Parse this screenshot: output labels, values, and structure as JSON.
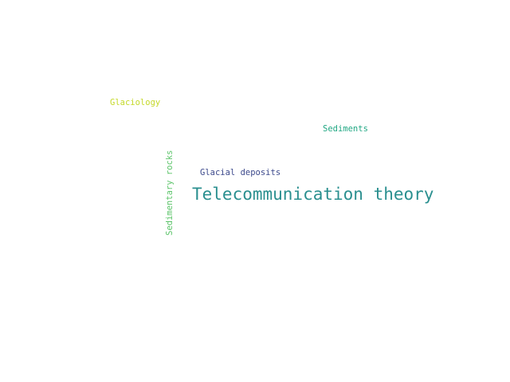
{
  "words": [
    {
      "text": "Telecommunication theory",
      "color": "#2a8f8f"
    },
    {
      "text": "Glacial deposits",
      "color": "#3d4a8c"
    },
    {
      "text": "Sediments",
      "color": "#22a884"
    },
    {
      "text": "Glaciology",
      "color": "#c5d92a"
    },
    {
      "text": "Sedimentary rocks",
      "color": "#5cc46a"
    }
  ]
}
